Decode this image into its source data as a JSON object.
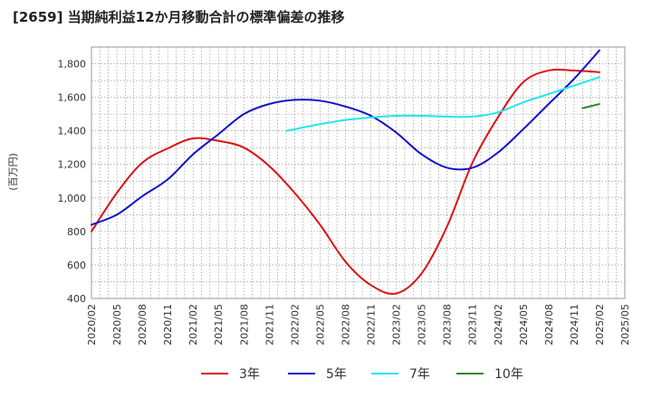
{
  "title": "[2659]  当期純利益12か月移動合計の標準偏差の推移",
  "chart_data": {
    "type": "line",
    "title": "[2659]  当期純利益12か月移動合計の標準偏差の推移",
    "xlabel": "",
    "ylabel": "(百万円)",
    "ylim": [
      400,
      1900
    ],
    "yticks": [
      400,
      600,
      800,
      1000,
      1200,
      1400,
      1600,
      1800
    ],
    "ytick_labels": [
      "400",
      "600",
      "800",
      "1,000",
      "1,200",
      "1,400",
      "1,600",
      "1,800"
    ],
    "xticks": [
      "2020/02",
      "2020/05",
      "2020/08",
      "2020/11",
      "2021/02",
      "2021/05",
      "2021/08",
      "2021/11",
      "2022/02",
      "2022/05",
      "2022/08",
      "2022/11",
      "2023/02",
      "2023/05",
      "2023/08",
      "2023/11",
      "2024/02",
      "2024/05",
      "2024/08",
      "2024/11",
      "2025/02",
      "2025/05"
    ],
    "grid": true,
    "legend_position": "bottom",
    "series": [
      {
        "name": "3年",
        "color": "#dd1111",
        "x": [
          "2020/02",
          "2020/05",
          "2020/08",
          "2020/11",
          "2021/02",
          "2021/05",
          "2021/08",
          "2021/11",
          "2022/02",
          "2022/05",
          "2022/08",
          "2022/11",
          "2023/02",
          "2023/05",
          "2023/08",
          "2023/11",
          "2024/02",
          "2024/05",
          "2024/08",
          "2024/11",
          "2025/02"
        ],
        "values": [
          800,
          1030,
          1210,
          1295,
          1355,
          1340,
          1300,
          1190,
          1030,
          840,
          620,
          480,
          430,
          550,
          830,
          1210,
          1480,
          1690,
          1760,
          1760,
          1750
        ]
      },
      {
        "name": "5年",
        "color": "#1111cc",
        "x": [
          "2020/02",
          "2020/05",
          "2020/08",
          "2020/11",
          "2021/02",
          "2021/05",
          "2021/08",
          "2021/11",
          "2022/02",
          "2022/05",
          "2022/08",
          "2022/11",
          "2023/02",
          "2023/05",
          "2023/08",
          "2023/11",
          "2024/02",
          "2024/05",
          "2024/08",
          "2024/11",
          "2025/02"
        ],
        "values": [
          840,
          900,
          1010,
          1110,
          1260,
          1380,
          1500,
          1560,
          1585,
          1580,
          1545,
          1490,
          1390,
          1260,
          1180,
          1180,
          1270,
          1410,
          1560,
          1710,
          1880
        ]
      },
      {
        "name": "7年",
        "color": "#22e6ee",
        "x": [
          "2022/01",
          "2022/05",
          "2022/08",
          "2022/11",
          "2023/02",
          "2023/05",
          "2023/08",
          "2023/11",
          "2024/02",
          "2024/05",
          "2024/08",
          "2024/11",
          "2025/02"
        ],
        "values": [
          1400,
          1440,
          1465,
          1480,
          1490,
          1490,
          1485,
          1485,
          1510,
          1570,
          1620,
          1670,
          1720
        ]
      },
      {
        "name": "10年",
        "color": "#2a8a2a",
        "x": [
          "2024/12",
          "2025/02"
        ],
        "values": [
          1535,
          1560
        ]
      }
    ]
  }
}
